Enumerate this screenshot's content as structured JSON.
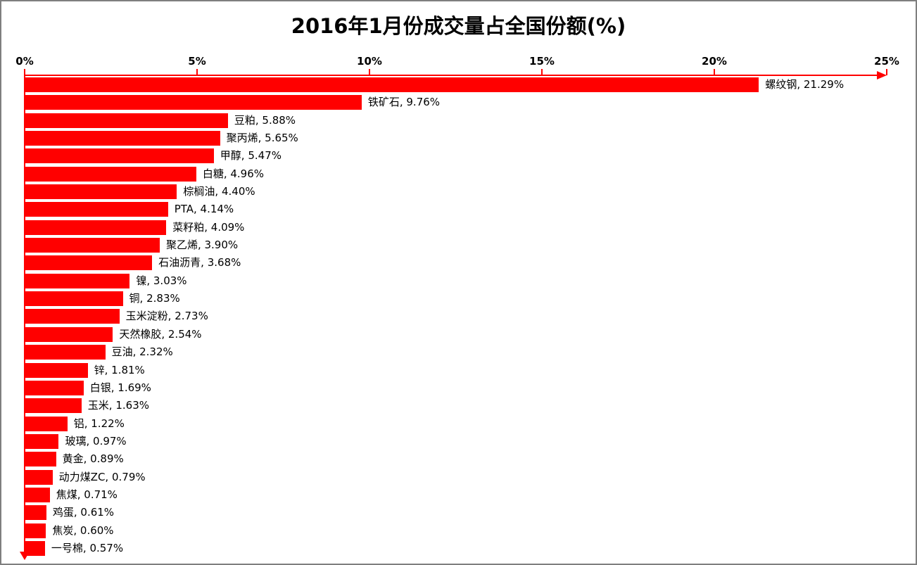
{
  "chart_data": {
    "type": "bar",
    "orientation": "horizontal",
    "title": "2016年1月份成交量占全国份额(%)",
    "categories": [
      "螺纹钢",
      "铁矿石",
      "豆粕",
      "聚丙烯",
      "甲醇",
      "白糖",
      "棕榈油",
      "PTA",
      "菜籽粕",
      "聚乙烯",
      "石油沥青",
      "镍",
      "铜",
      "玉米淀粉",
      "天然橡胶",
      "豆油",
      "锌",
      "白银",
      "玉米",
      "铝",
      "玻璃",
      "黄金",
      "动力煤ZC",
      "焦煤",
      "鸡蛋",
      "焦炭",
      "一号棉"
    ],
    "values": [
      21.29,
      9.76,
      5.88,
      5.65,
      5.47,
      4.96,
      4.4,
      4.14,
      4.09,
      3.9,
      3.68,
      3.03,
      2.83,
      2.73,
      2.54,
      2.32,
      1.81,
      1.69,
      1.63,
      1.22,
      0.97,
      0.89,
      0.79,
      0.71,
      0.61,
      0.6,
      0.57
    ],
    "data_labels": [
      "螺纹钢, 21.29%",
      "铁矿石, 9.76%",
      "豆粕, 5.88%",
      "聚丙烯, 5.65%",
      "甲醇, 5.47%",
      "白糖, 4.96%",
      "棕榈油, 4.40%",
      "PTA, 4.14%",
      "菜籽粕, 4.09%",
      "聚乙烯, 3.90%",
      "石油沥青, 3.68%",
      "镍, 3.03%",
      "铜, 2.83%",
      "玉米淀粉, 2.73%",
      "天然橡胶, 2.54%",
      "豆油, 2.32%",
      "锌, 1.81%",
      "白银, 1.69%",
      "玉米, 1.63%",
      "铝, 1.22%",
      "玻璃, 0.97%",
      "黄金, 0.89%",
      "动力煤ZC, 0.79%",
      "焦煤, 0.71%",
      "鸡蛋, 0.61%",
      "焦炭, 0.60%",
      "一号棉, 0.57%"
    ],
    "x_axis": {
      "min": 0,
      "max": 25,
      "tick_labels": [
        "0%",
        "5%",
        "10%",
        "15%",
        "20%",
        "25%"
      ],
      "unit": "%",
      "arrow": "right"
    },
    "y_axis": {
      "arrow": "down"
    },
    "legend": "none",
    "grid": false,
    "colors": {
      "bar": "#ff0000",
      "axis": "#ff0000",
      "text": "#000000",
      "background": "#ffffff",
      "border": "#7f7f7f"
    }
  }
}
